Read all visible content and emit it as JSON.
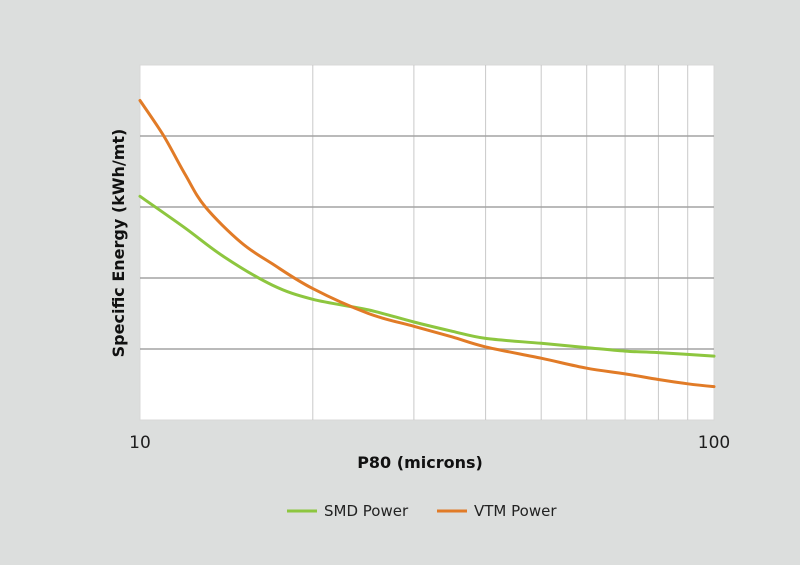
{
  "chart_data": {
    "type": "line",
    "xlabel": "P80 (microns)",
    "ylabel": "Specific Energy (kWh/mt)",
    "x_scale": "log",
    "xlim": [
      10,
      100
    ],
    "ylim": [
      0,
      5
    ],
    "x_ticks": [
      10,
      100
    ],
    "x_tick_labels": [
      "10",
      "100"
    ],
    "y_ticks": [
      0,
      1,
      2,
      3,
      4,
      5
    ],
    "y_tick_labels": [],
    "x_gridlines": [
      20,
      30,
      40,
      50,
      60,
      70,
      80,
      90
    ],
    "grid": true,
    "legend_position": "bottom",
    "series": [
      {
        "name": "SMD Power",
        "color": "#8dc63f",
        "x": [
          10,
          12,
          14,
          17,
          20,
          25,
          30,
          35,
          40,
          50,
          60,
          70,
          80,
          100
        ],
        "y": [
          3.15,
          2.7,
          2.3,
          1.9,
          1.7,
          1.55,
          1.38,
          1.25,
          1.15,
          1.08,
          1.02,
          0.97,
          0.95,
          0.9
        ]
      },
      {
        "name": "VTM Power",
        "color": "#e17b27",
        "x": [
          10,
          11,
          12,
          13,
          15,
          17,
          20,
          25,
          30,
          35,
          40,
          50,
          60,
          70,
          80,
          90,
          100
        ],
        "y": [
          4.5,
          4.0,
          3.45,
          3.0,
          2.5,
          2.2,
          1.85,
          1.5,
          1.32,
          1.17,
          1.03,
          0.87,
          0.73,
          0.65,
          0.57,
          0.51,
          0.47
        ]
      }
    ]
  }
}
